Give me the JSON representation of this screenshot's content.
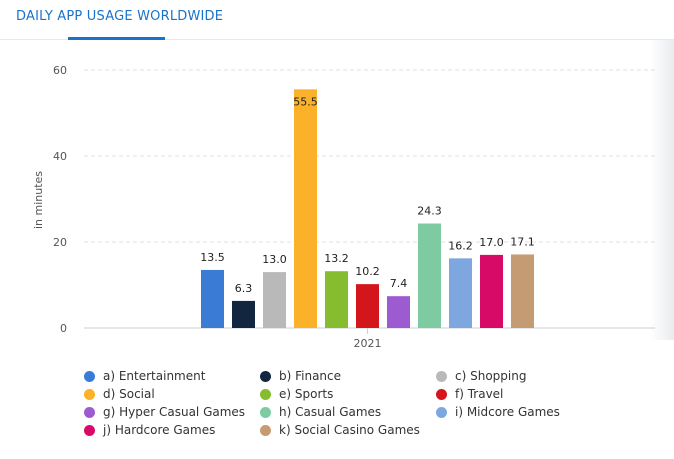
{
  "header": {
    "title": "DAILY APP USAGE WORLDWIDE"
  },
  "colors": {
    "accent": "#1a73c9",
    "grid": "#dde2e8",
    "axis_text": "#555555",
    "label_text": "#222222"
  },
  "chart_data": {
    "type": "bar",
    "title": "DAILY APP USAGE WORLDWIDE",
    "xlabel": "",
    "ylabel": "in minutes",
    "categories": [
      "2021"
    ],
    "ylim": [
      0,
      60
    ],
    "yticks": [
      "0",
      "20",
      "40",
      "60"
    ],
    "grid": true,
    "legend_position": "bottom",
    "series": [
      {
        "name": "a) Entertainment",
        "values": [
          13.5
        ],
        "label": "13.5",
        "color": "#3a7bd5"
      },
      {
        "name": "b) Finance",
        "values": [
          6.3
        ],
        "label": "6.3",
        "color": "#13263f"
      },
      {
        "name": "c) Shopping",
        "values": [
          13.0
        ],
        "label": "13.0",
        "color": "#b9b9b9"
      },
      {
        "name": "d) Social",
        "values": [
          55.5
        ],
        "label": "55.5",
        "color": "#fbb12a"
      },
      {
        "name": "e) Sports",
        "values": [
          13.2
        ],
        "label": "13.2",
        "color": "#86bc2f"
      },
      {
        "name": "f) Travel",
        "values": [
          10.2
        ],
        "label": "10.2",
        "color": "#d4151c"
      },
      {
        "name": "g) Hyper Casual Games",
        "values": [
          7.4
        ],
        "label": "7.4",
        "color": "#9c5bd0"
      },
      {
        "name": "h) Casual Games",
        "values": [
          24.3
        ],
        "label": "24.3",
        "color": "#7fcba1"
      },
      {
        "name": "i) Midcore Games",
        "values": [
          16.2
        ],
        "label": "16.2",
        "color": "#7ea7e0"
      },
      {
        "name": "j) Hardcore Games",
        "values": [
          17.0
        ],
        "label": "17.0",
        "color": "#d80a67"
      },
      {
        "name": "k) Social Casino Games",
        "values": [
          17.1
        ],
        "label": "17.1",
        "color": "#c49b72"
      }
    ]
  }
}
